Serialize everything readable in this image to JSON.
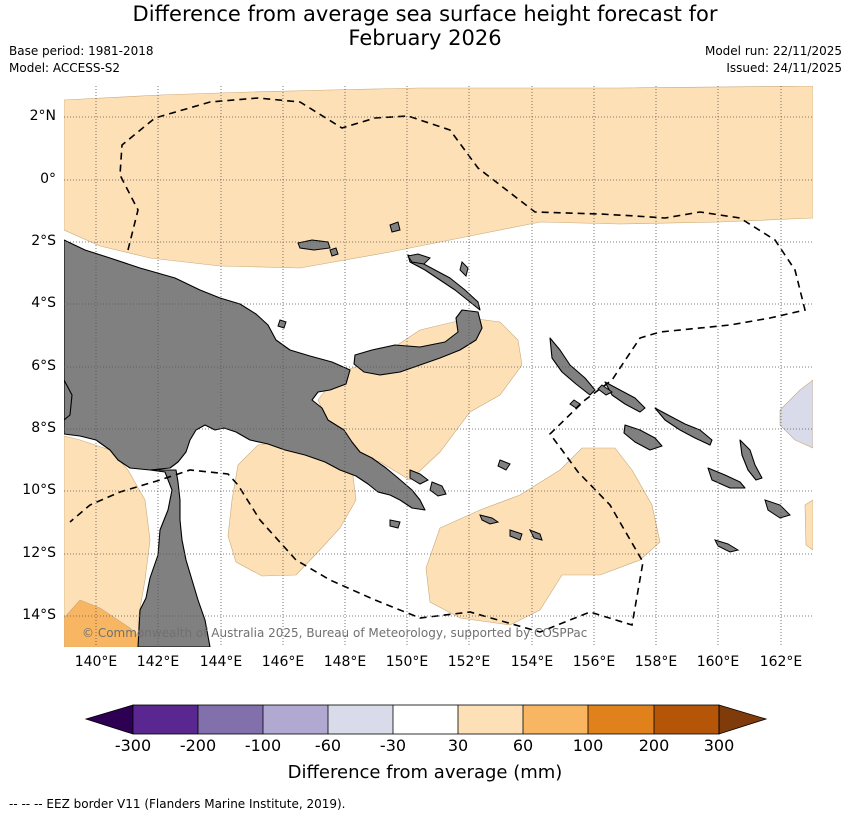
{
  "header": {
    "title_line1": "Difference from average sea surface height forecast for",
    "title_line2": "February 2026",
    "base_period": "Base period: 1981-2018",
    "model": "Model: ACCESS-S2",
    "model_run": "Model run: 22/11/2025",
    "issued": "Issued: 24/11/2025"
  },
  "map": {
    "lat_ticks": [
      "2°N",
      "0°",
      "2°S",
      "4°S",
      "6°S",
      "8°S",
      "10°S",
      "12°S",
      "14°S"
    ],
    "lon_ticks": [
      "140°E",
      "142°E",
      "144°E",
      "146°E",
      "148°E",
      "150°E",
      "152°E",
      "154°E",
      "156°E",
      "158°E",
      "160°E",
      "162°E"
    ],
    "land_color": "#808080",
    "gridlines": true,
    "copyright": "© Commonwealth of Australia 2025, Bureau of Meteorology, supported by COSPPac"
  },
  "colorbar": {
    "ticks": [
      "-300",
      "-200",
      "-100",
      "-60",
      "-30",
      "30",
      "60",
      "100",
      "200",
      "300"
    ],
    "colors": [
      "#5a2690",
      "#8270ad",
      "#b1a9d2",
      "#d9dbea",
      "#ffffff",
      "#fde0b6",
      "#f9b662",
      "#e0811c",
      "#b45507"
    ],
    "under_color": "#2d0053",
    "over_color": "#7f3c0a",
    "label": "Difference from average (mm)"
  },
  "footer": {
    "legend_text": "--  --  -- EEZ border V11 (Flanders Marine Institute, 2019)."
  }
}
